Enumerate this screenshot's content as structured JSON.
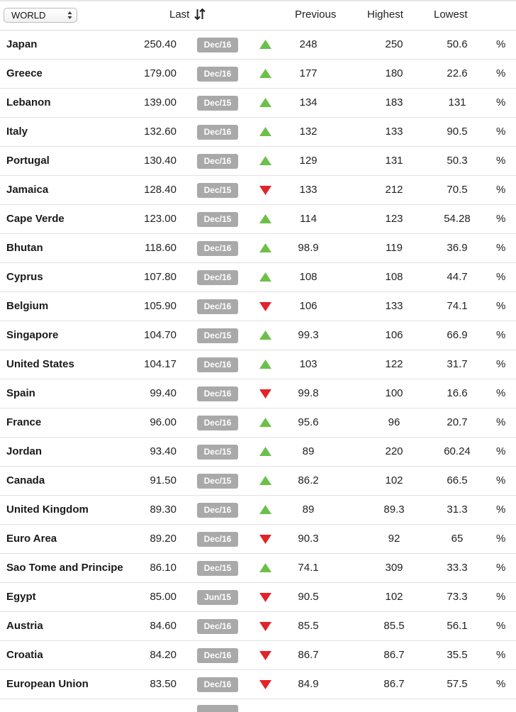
{
  "colors": {
    "up": "#6cc04a",
    "down": "#e2232a",
    "date_badge": "#a9a9a9"
  },
  "header": {
    "region_select": "WORLD",
    "last_label": "Last",
    "sort_icon": "sort-up-down-arrows-icon",
    "previous_label": "Previous",
    "highest_label": "Highest",
    "lowest_label": "Lowest"
  },
  "rows": [
    {
      "country": "Japan",
      "last": "250.40",
      "date": "Dec/16",
      "trend": "up",
      "previous": "248",
      "highest": "250",
      "lowest": "50.6",
      "unit": "%"
    },
    {
      "country": "Greece",
      "last": "179.00",
      "date": "Dec/16",
      "trend": "up",
      "previous": "177",
      "highest": "180",
      "lowest": "22.6",
      "unit": "%"
    },
    {
      "country": "Lebanon",
      "last": "139.00",
      "date": "Dec/15",
      "trend": "up",
      "previous": "134",
      "highest": "183",
      "lowest": "131",
      "unit": "%"
    },
    {
      "country": "Italy",
      "last": "132.60",
      "date": "Dec/16",
      "trend": "up",
      "previous": "132",
      "highest": "133",
      "lowest": "90.5",
      "unit": "%"
    },
    {
      "country": "Portugal",
      "last": "130.40",
      "date": "Dec/16",
      "trend": "up",
      "previous": "129",
      "highest": "131",
      "lowest": "50.3",
      "unit": "%"
    },
    {
      "country": "Jamaica",
      "last": "128.40",
      "date": "Dec/15",
      "trend": "down",
      "previous": "133",
      "highest": "212",
      "lowest": "70.5",
      "unit": "%"
    },
    {
      "country": "Cape Verde",
      "last": "123.00",
      "date": "Dec/15",
      "trend": "up",
      "previous": "114",
      "highest": "123",
      "lowest": "54.28",
      "unit": "%"
    },
    {
      "country": "Bhutan",
      "last": "118.60",
      "date": "Dec/16",
      "trend": "up",
      "previous": "98.9",
      "highest": "119",
      "lowest": "36.9",
      "unit": "%"
    },
    {
      "country": "Cyprus",
      "last": "107.80",
      "date": "Dec/16",
      "trend": "up",
      "previous": "108",
      "highest": "108",
      "lowest": "44.7",
      "unit": "%"
    },
    {
      "country": "Belgium",
      "last": "105.90",
      "date": "Dec/16",
      "trend": "down",
      "previous": "106",
      "highest": "133",
      "lowest": "74.1",
      "unit": "%"
    },
    {
      "country": "Singapore",
      "last": "104.70",
      "date": "Dec/15",
      "trend": "up",
      "previous": "99.3",
      "highest": "106",
      "lowest": "66.9",
      "unit": "%"
    },
    {
      "country": "United States",
      "last": "104.17",
      "date": "Dec/16",
      "trend": "up",
      "previous": "103",
      "highest": "122",
      "lowest": "31.7",
      "unit": "%"
    },
    {
      "country": "Spain",
      "last": "99.40",
      "date": "Dec/16",
      "trend": "down",
      "previous": "99.8",
      "highest": "100",
      "lowest": "16.6",
      "unit": "%"
    },
    {
      "country": "France",
      "last": "96.00",
      "date": "Dec/16",
      "trend": "up",
      "previous": "95.6",
      "highest": "96",
      "lowest": "20.7",
      "unit": "%"
    },
    {
      "country": "Jordan",
      "last": "93.40",
      "date": "Dec/15",
      "trend": "up",
      "previous": "89",
      "highest": "220",
      "lowest": "60.24",
      "unit": "%"
    },
    {
      "country": "Canada",
      "last": "91.50",
      "date": "Dec/15",
      "trend": "up",
      "previous": "86.2",
      "highest": "102",
      "lowest": "66.5",
      "unit": "%"
    },
    {
      "country": "United Kingdom",
      "last": "89.30",
      "date": "Dec/16",
      "trend": "up",
      "previous": "89",
      "highest": "89.3",
      "lowest": "31.3",
      "unit": "%"
    },
    {
      "country": "Euro Area",
      "last": "89.20",
      "date": "Dec/16",
      "trend": "down",
      "previous": "90.3",
      "highest": "92",
      "lowest": "65",
      "unit": "%"
    },
    {
      "country": "Sao Tome and Principe",
      "last": "86.10",
      "date": "Dec/15",
      "trend": "up",
      "previous": "74.1",
      "highest": "309",
      "lowest": "33.3",
      "unit": "%"
    },
    {
      "country": "Egypt",
      "last": "85.00",
      "date": "Jun/15",
      "trend": "down",
      "previous": "90.5",
      "highest": "102",
      "lowest": "73.3",
      "unit": "%"
    },
    {
      "country": "Austria",
      "last": "84.60",
      "date": "Dec/16",
      "trend": "down",
      "previous": "85.5",
      "highest": "85.5",
      "lowest": "56.1",
      "unit": "%"
    },
    {
      "country": "Croatia",
      "last": "84.20",
      "date": "Dec/16",
      "trend": "down",
      "previous": "86.7",
      "highest": "86.7",
      "lowest": "35.5",
      "unit": "%"
    },
    {
      "country": "European Union",
      "last": "83.50",
      "date": "Dec/16",
      "trend": "down",
      "previous": "84.9",
      "highest": "86.7",
      "lowest": "57.5",
      "unit": "%"
    }
  ]
}
